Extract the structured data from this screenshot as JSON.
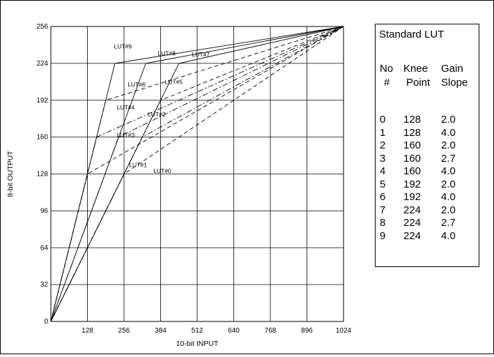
{
  "chart_data": {
    "type": "line",
    "xlabel": "10-bit INPUT",
    "ylabel": "8-bit OUTPUT",
    "xlim": [
      0,
      1024
    ],
    "ylim": [
      0,
      256
    ],
    "x_ticks": [
      "128",
      "256",
      "384",
      "512",
      "640",
      "768",
      "896",
      "1024"
    ],
    "y_ticks": [
      "0",
      "32",
      "64",
      "96",
      "128",
      "160",
      "192",
      "224",
      "256"
    ],
    "grid": true,
    "series": [
      {
        "name": "LUT#0",
        "knee": 128,
        "slope": 2.0,
        "style": "dashed",
        "x": [
          0,
          256,
          1024
        ],
        "y": [
          0,
          128,
          256
        ]
      },
      {
        "name": "LUT#1",
        "knee": 128,
        "slope": 4.0,
        "style": "dashed",
        "x": [
          0,
          128,
          1024
        ],
        "y": [
          0,
          128,
          256
        ]
      },
      {
        "name": "LUT#2",
        "knee": 160,
        "slope": 2.0,
        "style": "dashdot",
        "x": [
          0,
          320,
          1024
        ],
        "y": [
          0,
          160,
          256
        ]
      },
      {
        "name": "LUT#3",
        "knee": 160,
        "slope": 2.7,
        "style": "dashdot",
        "x": [
          0,
          237,
          1024
        ],
        "y": [
          0,
          160,
          256
        ]
      },
      {
        "name": "LUT#4",
        "knee": 160,
        "slope": 4.0,
        "style": "dashdot",
        "x": [
          0,
          160,
          1024
        ],
        "y": [
          0,
          160,
          256
        ]
      },
      {
        "name": "LUT#5",
        "knee": 192,
        "slope": 2.0,
        "style": "dashed",
        "x": [
          0,
          384,
          1024
        ],
        "y": [
          0,
          192,
          256
        ]
      },
      {
        "name": "LUT#6",
        "knee": 192,
        "slope": 4.0,
        "style": "dashed",
        "x": [
          0,
          192,
          1024
        ],
        "y": [
          0,
          192,
          256
        ]
      },
      {
        "name": "LUT#7",
        "knee": 224,
        "slope": 2.0,
        "style": "solid",
        "x": [
          0,
          448,
          1024
        ],
        "y": [
          0,
          224,
          256
        ]
      },
      {
        "name": "LUT#8",
        "knee": 224,
        "slope": 2.7,
        "style": "solid",
        "x": [
          0,
          332,
          1024
        ],
        "y": [
          0,
          224,
          256
        ]
      },
      {
        "name": "LUT#9",
        "knee": 224,
        "slope": 4.0,
        "style": "solid",
        "x": [
          0,
          224,
          1024
        ],
        "y": [
          0,
          224,
          256
        ]
      }
    ],
    "annotations": [
      {
        "text": "LUT#9",
        "x": 252,
        "y": 237
      },
      {
        "text": "LUT#8",
        "x": 405,
        "y": 231
      },
      {
        "text": "LUT#7",
        "x": 525,
        "y": 230
      },
      {
        "text": "LUT#6",
        "x": 300,
        "y": 204
      },
      {
        "text": "LUT#5",
        "x": 430,
        "y": 206
      },
      {
        "text": "LUT#4",
        "x": 262,
        "y": 184
      },
      {
        "text": "LUT#2",
        "x": 370,
        "y": 178
      },
      {
        "text": "LUT#3",
        "x": 262,
        "y": 160
      },
      {
        "text": "LUT#1",
        "x": 305,
        "y": 134
      },
      {
        "text": "LUT#0",
        "x": 390,
        "y": 129
      }
    ]
  },
  "lut_table": {
    "title": "Standard LUT",
    "col_headers": [
      [
        "No",
        "#"
      ],
      [
        "Knee",
        "Point"
      ],
      [
        "Gain",
        "Slope"
      ]
    ],
    "rows": [
      [
        "0",
        "128",
        "2.0"
      ],
      [
        "1",
        "128",
        "4.0"
      ],
      [
        "2",
        "160",
        "2.0"
      ],
      [
        "3",
        "160",
        "2.7"
      ],
      [
        "4",
        "160",
        "4.0"
      ],
      [
        "5",
        "192",
        "2.0"
      ],
      [
        "6",
        "192",
        "4.0"
      ],
      [
        "7",
        "224",
        "2.0"
      ],
      [
        "8",
        "224",
        "2.7"
      ],
      [
        "9",
        "224",
        "4.0"
      ]
    ]
  }
}
